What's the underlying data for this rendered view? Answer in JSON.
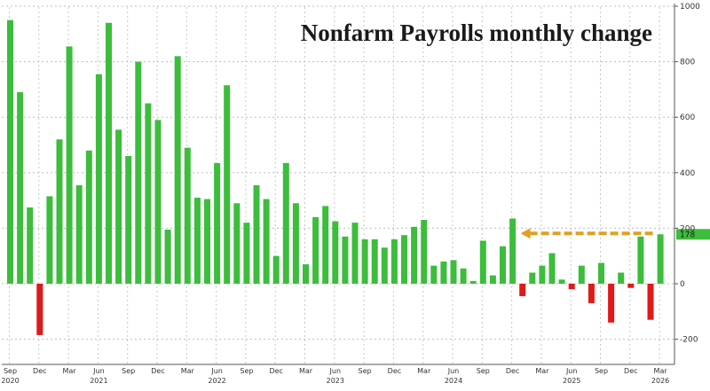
{
  "chart_data": {
    "type": "bar",
    "title": "Nonfarm Payrolls monthly change",
    "ylim": [
      -300,
      1000
    ],
    "yticks": [
      -200,
      0,
      200,
      400,
      600,
      800,
      1000
    ],
    "grid": true,
    "colors": {
      "positive": "#3cbd3c",
      "negative": "#e01919",
      "callout_arrow": "#e0a020",
      "callout_label": "#3cbd3c"
    },
    "months": [
      "2020-09",
      "2020-10",
      "2020-11",
      "2020-12",
      "2021-01",
      "2021-02",
      "2021-03",
      "2021-04",
      "2021-05",
      "2021-06",
      "2021-07",
      "2021-08",
      "2021-09",
      "2021-10",
      "2021-11",
      "2021-12",
      "2022-01",
      "2022-02",
      "2022-03",
      "2022-04",
      "2022-05",
      "2022-06",
      "2022-07",
      "2022-08",
      "2022-09",
      "2022-10",
      "2022-11",
      "2022-12",
      "2023-01",
      "2023-02",
      "2023-03",
      "2023-04",
      "2023-05",
      "2023-06",
      "2023-07",
      "2023-08",
      "2023-09",
      "2023-10",
      "2023-11",
      "2023-12",
      "2024-01",
      "2024-02",
      "2024-03",
      "2024-04",
      "2024-05",
      "2024-06",
      "2024-07",
      "2024-08",
      "2024-09",
      "2024-10",
      "2024-11",
      "2024-12",
      "2025-01",
      "2025-02",
      "2025-03",
      "2025-04",
      "2025-05",
      "2025-06",
      "2025-07",
      "2025-08",
      "2025-09",
      "2025-10",
      "2025-11",
      "2025-12",
      "2026-01",
      "2026-02",
      "2026-03"
    ],
    "values": [
      950,
      690,
      275,
      -185,
      315,
      520,
      855,
      355,
      480,
      755,
      940,
      555,
      460,
      800,
      650,
      590,
      195,
      820,
      490,
      310,
      305,
      435,
      715,
      290,
      220,
      355,
      305,
      100,
      435,
      290,
      70,
      240,
      280,
      225,
      170,
      220,
      160,
      160,
      130,
      160,
      175,
      205,
      230,
      65,
      80,
      85,
      55,
      10,
      155,
      30,
      135,
      235,
      -45,
      40,
      65,
      110,
      15,
      -20,
      65,
      -70,
      75,
      -140,
      40,
      -15,
      170,
      -130,
      178
    ],
    "x_tick_labels": [
      {
        "index": 0,
        "month": "Sep",
        "year": "2020"
      },
      {
        "index": 3,
        "month": "Dec",
        "year": ""
      },
      {
        "index": 6,
        "month": "Mar",
        "year": ""
      },
      {
        "index": 9,
        "month": "Jun",
        "year": "2021"
      },
      {
        "index": 12,
        "month": "Sep",
        "year": ""
      },
      {
        "index": 15,
        "month": "Dec",
        "year": ""
      },
      {
        "index": 18,
        "month": "Mar",
        "year": ""
      },
      {
        "index": 21,
        "month": "Jun",
        "year": "2022"
      },
      {
        "index": 24,
        "month": "Sep",
        "year": ""
      },
      {
        "index": 27,
        "month": "Dec",
        "year": ""
      },
      {
        "index": 30,
        "month": "Mar",
        "year": ""
      },
      {
        "index": 33,
        "month": "Jun",
        "year": "2023"
      },
      {
        "index": 36,
        "month": "Sep",
        "year": ""
      },
      {
        "index": 39,
        "month": "Dec",
        "year": ""
      },
      {
        "index": 42,
        "month": "Mar",
        "year": ""
      },
      {
        "index": 45,
        "month": "Jun",
        "year": "2024"
      },
      {
        "index": 48,
        "month": "Sep",
        "year": ""
      },
      {
        "index": 51,
        "month": "Dec",
        "year": ""
      },
      {
        "index": 54,
        "month": "Mar",
        "year": ""
      },
      {
        "index": 57,
        "month": "Jun",
        "year": "2025"
      },
      {
        "index": 60,
        "month": "Sep",
        "year": ""
      },
      {
        "index": 63,
        "month": "Dec",
        "year": ""
      },
      {
        "index": 66,
        "month": "Mar",
        "year": "2026"
      }
    ],
    "callout": {
      "from_index": 51,
      "to_index": 66,
      "label": "178"
    }
  }
}
